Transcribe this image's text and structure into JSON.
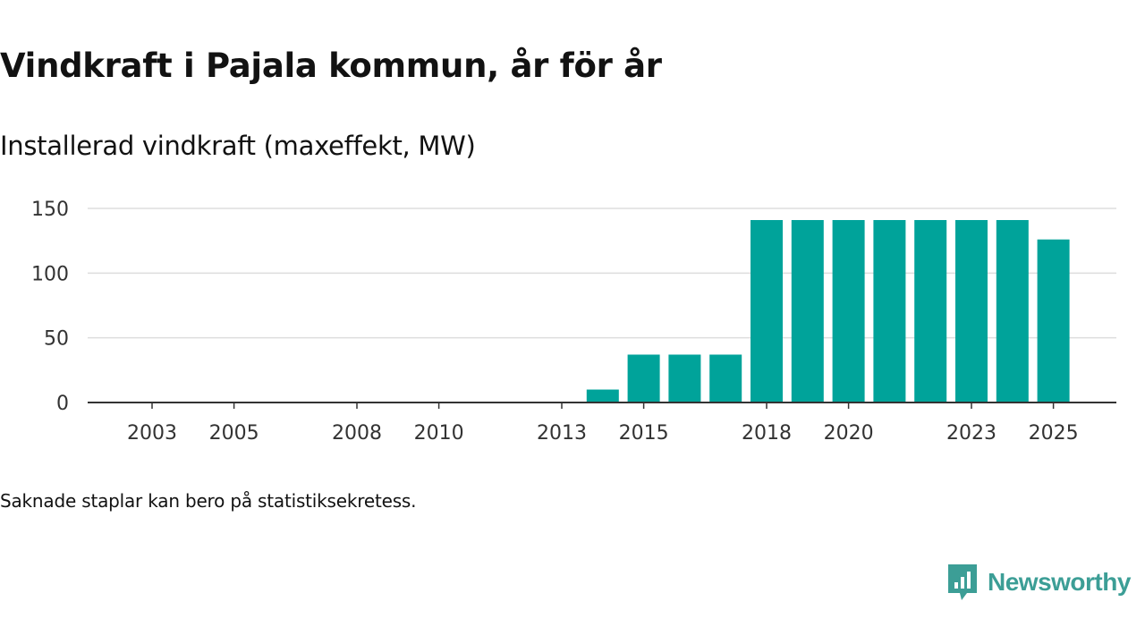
{
  "title": "Vindkraft i Pajala kommun, år för år",
  "subtitle": "Installerad vindkraft (maxeffekt, MW)",
  "note": "Saknade staplar kan bero på statistiksekretess.",
  "brand": {
    "name": "Newsworthy",
    "icon": "newsworthy-logo-icon"
  },
  "colors": {
    "bar": "#00A39A",
    "brand": "#3C9E96",
    "grid": "#DDDDDD",
    "axis": "#333333",
    "text": "#121212"
  },
  "chart_data": {
    "type": "bar",
    "title": "Vindkraft i Pajala kommun, år för år",
    "subtitle": "Installerad vindkraft (maxeffekt, MW)",
    "xlabel": "",
    "ylabel": "",
    "ylim": [
      0,
      150
    ],
    "yticks": [
      0,
      50,
      100,
      150
    ],
    "grid": true,
    "categories": [
      "2003",
      "2004",
      "2005",
      "2006",
      "2007",
      "2008",
      "2009",
      "2010",
      "2011",
      "2012",
      "2013",
      "2014",
      "2015",
      "2016",
      "2017",
      "2018",
      "2019",
      "2020",
      "2021",
      "2022",
      "2023",
      "2024",
      "2025"
    ],
    "x_tick_labels": [
      "2003",
      "2005",
      "2008",
      "2010",
      "2013",
      "2015",
      "2018",
      "2020",
      "2023",
      "2025"
    ],
    "values": [
      null,
      null,
      null,
      null,
      null,
      null,
      null,
      null,
      null,
      null,
      null,
      10,
      37,
      37,
      37,
      141,
      141,
      141,
      141,
      141,
      141,
      141,
      126
    ]
  }
}
